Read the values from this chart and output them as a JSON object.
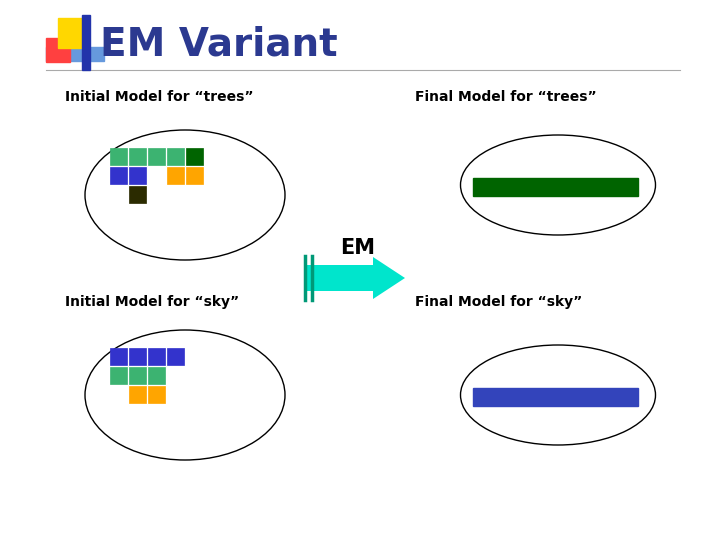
{
  "title": "EM Variant",
  "title_color": "#2B3990",
  "title_fontsize": 28,
  "bg_color": "#ffffff",
  "label_trees_initial": "Initial Model for “trees”",
  "label_trees_final": "Final Model for “trees”",
  "label_sky_initial": "Initial Model for “sky”",
  "label_sky_final": "Final Model for “sky”",
  "em_label": "EM",
  "teal_green": "#3CB371",
  "dark_green": "#006400",
  "blue": "#3333CC",
  "orange": "#FFA500",
  "dark_brown": "#2B2B00",
  "arrow_color": "#00E5CC",
  "arrow_line_color": "#009977",
  "royal_blue": "#3344BB",
  "yellow": "#FFD700",
  "red_pink": "#FF4040",
  "dark_blue_bar": "#2233AA",
  "light_blue_bar": "#6699DD"
}
